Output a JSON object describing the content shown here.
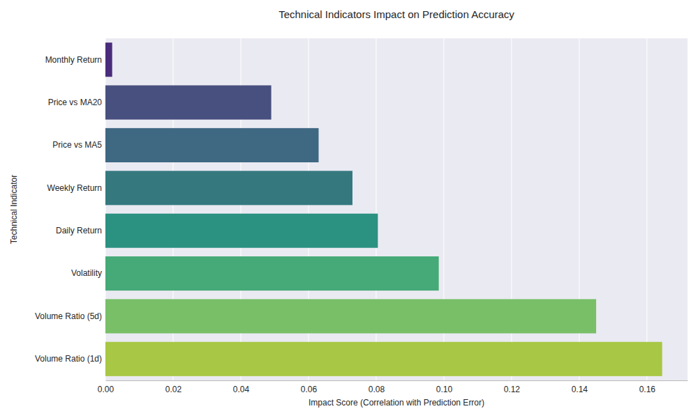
{
  "chart_data": {
    "type": "bar",
    "orientation": "horizontal",
    "title": "Technical Indicators Impact on Prediction Accuracy",
    "x_label": "Impact Score (Correlation with Prediction Error)",
    "y_label": "Technical Indicator",
    "categories": [
      "Monthly Return",
      "Price vs MA20",
      "Price vs MA5",
      "Weekly Return",
      "Daily Return",
      "Volatility",
      "Volume Ratio (5d)",
      "Volume Ratio (1d)"
    ],
    "values": [
      0.002,
      0.049,
      0.063,
      0.073,
      0.0805,
      0.0985,
      0.145,
      0.1645
    ],
    "colors": [
      "#4a2c7c",
      "#48507f",
      "#3f6883",
      "#35797f",
      "#2b9180",
      "#45aa77",
      "#78bf68",
      "#a8c744"
    ],
    "xlim": [
      0,
      0.172
    ],
    "xticks": [
      {
        "value": 0,
        "label": "0.00"
      },
      {
        "value": 0.02,
        "label": "0.02"
      },
      {
        "value": 0.04,
        "label": "0.04"
      },
      {
        "value": 0.06,
        "label": "0.06"
      },
      {
        "value": 0.08,
        "label": "0.08"
      },
      {
        "value": 0.1,
        "label": "0.10"
      },
      {
        "value": 0.12,
        "label": "0.12"
      },
      {
        "value": 0.14,
        "label": "0.14"
      },
      {
        "value": 0.16,
        "label": "0.16"
      }
    ],
    "grid": true
  }
}
